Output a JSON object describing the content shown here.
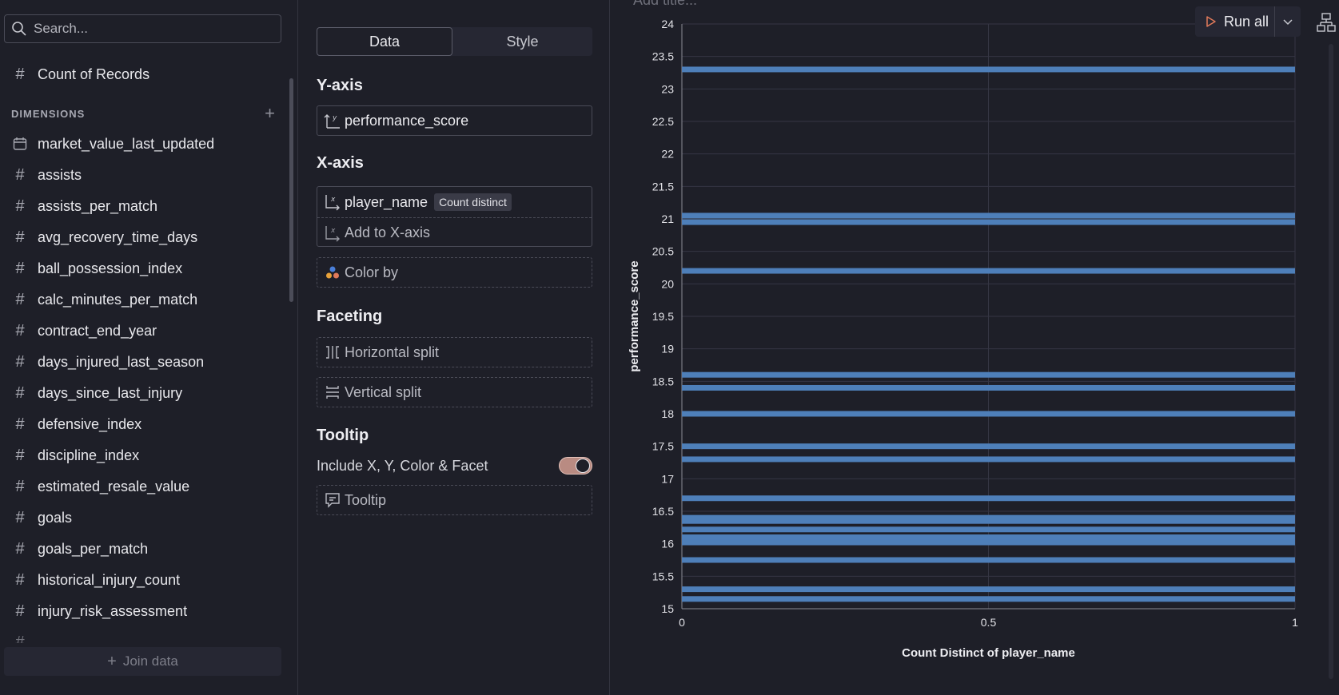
{
  "sidebar": {
    "search_placeholder": "Search...",
    "measure": {
      "label": "Count of Records",
      "icon": "hash-icon"
    },
    "dimensions_label": "DIMENSIONS",
    "fields": [
      {
        "label": "market_value_last_updated",
        "icon": "calendar-icon"
      },
      {
        "label": "assists",
        "icon": "hash-icon"
      },
      {
        "label": "assists_per_match",
        "icon": "hash-icon"
      },
      {
        "label": "avg_recovery_time_days",
        "icon": "hash-icon"
      },
      {
        "label": "ball_possession_index",
        "icon": "hash-icon"
      },
      {
        "label": "calc_minutes_per_match",
        "icon": "hash-icon"
      },
      {
        "label": "contract_end_year",
        "icon": "hash-icon"
      },
      {
        "label": "days_injured_last_season",
        "icon": "hash-icon"
      },
      {
        "label": "days_since_last_injury",
        "icon": "hash-icon"
      },
      {
        "label": "defensive_index",
        "icon": "hash-icon"
      },
      {
        "label": "discipline_index",
        "icon": "hash-icon"
      },
      {
        "label": "estimated_resale_value",
        "icon": "hash-icon"
      },
      {
        "label": "goals",
        "icon": "hash-icon"
      },
      {
        "label": "goals_per_match",
        "icon": "hash-icon"
      },
      {
        "label": "historical_injury_count",
        "icon": "hash-icon"
      },
      {
        "label": "injury_risk_assessment",
        "icon": "hash-icon"
      }
    ],
    "join_data_label": "Join data"
  },
  "config": {
    "tabs": {
      "data": "Data",
      "style": "Style"
    },
    "y_axis": {
      "title": "Y-axis",
      "field": "performance_score"
    },
    "x_axis": {
      "title": "X-axis",
      "field": "player_name",
      "aggregation": "Count distinct",
      "add_label": "Add to X-axis"
    },
    "color_by": "Color by",
    "faceting": {
      "title": "Faceting",
      "horizontal": "Horizontal split",
      "vertical": "Vertical split"
    },
    "tooltip": {
      "title": "Tooltip",
      "include_label": "Include X, Y, Color & Facet",
      "include_on": true,
      "well_label": "Tooltip"
    }
  },
  "toolbar": {
    "add_title_placeholder": "Add title...",
    "run_all_label": "Run all"
  },
  "colors": {
    "bar": "#4e7fb9",
    "accent_toggle": "#b98b82",
    "background": "#1e1f28"
  },
  "chart_data": {
    "type": "bar",
    "orientation": "horizontal",
    "xlabel": "Count Distinct of player_name",
    "ylabel": "performance_score",
    "xlim": [
      0,
      1
    ],
    "ylim": [
      15,
      24
    ],
    "x_ticks": [
      "0",
      "0.5",
      "1"
    ],
    "y_ticks": [
      "15",
      "15.5",
      "16",
      "16.5",
      "17",
      "17.5",
      "18",
      "18.5",
      "19",
      "19.5",
      "20",
      "20.5",
      "21",
      "21.5",
      "22",
      "22.5",
      "23",
      "23.5",
      "24"
    ],
    "bars": [
      {
        "y": 23.3,
        "value": 1
      },
      {
        "y": 21.05,
        "value": 1
      },
      {
        "y": 20.95,
        "value": 1
      },
      {
        "y": 20.2,
        "value": 1
      },
      {
        "y": 18.6,
        "value": 1
      },
      {
        "y": 18.4,
        "value": 1
      },
      {
        "y": 18.0,
        "value": 1
      },
      {
        "y": 17.5,
        "value": 1
      },
      {
        "y": 17.3,
        "value": 1
      },
      {
        "y": 16.7,
        "value": 1
      },
      {
        "y": 16.4,
        "value": 1
      },
      {
        "y": 16.35,
        "value": 1
      },
      {
        "y": 16.22,
        "value": 1
      },
      {
        "y": 16.1,
        "value": 1
      },
      {
        "y": 16.02,
        "value": 1
      },
      {
        "y": 15.75,
        "value": 1
      },
      {
        "y": 15.3,
        "value": 1
      },
      {
        "y": 15.15,
        "value": 1
      }
    ]
  }
}
